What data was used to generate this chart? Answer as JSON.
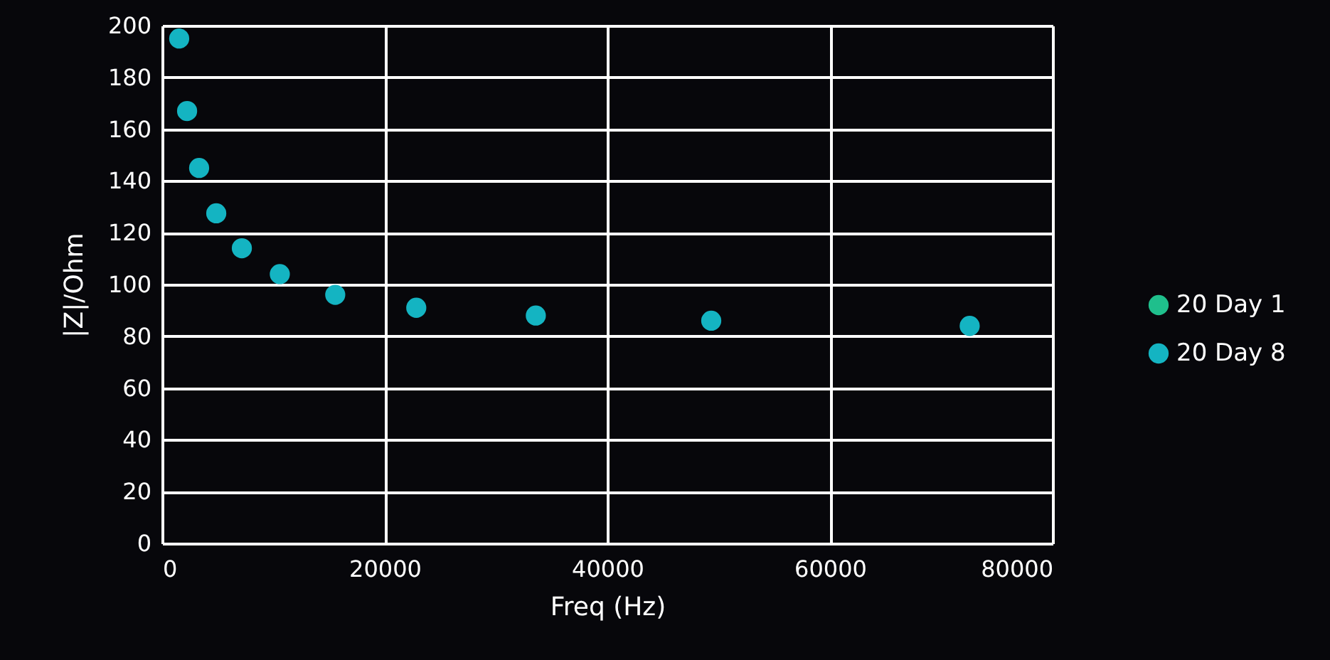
{
  "chart_data": {
    "type": "scatter",
    "xlabel": "Freq (Hz)",
    "ylabel": "|Z|/Ohm",
    "x": [
      1530,
      2240,
      3320,
      4860,
      7160,
      10570,
      15550,
      22830,
      33570,
      49330,
      72550
    ],
    "series": [
      {
        "name": "20 Day 1",
        "color": "#1fbf8c",
        "values": [
          null,
          null,
          null,
          null,
          null,
          null,
          null,
          null,
          null,
          null,
          null
        ]
      },
      {
        "name": "20 Day 8",
        "color": "#14b4c2",
        "values": [
          195,
          167,
          145,
          127.5,
          114,
          104,
          96,
          91,
          88,
          86,
          84
        ]
      }
    ],
    "xlim": [
      0,
      80000
    ],
    "xticks": [
      0,
      20000,
      40000,
      60000,
      80000
    ],
    "ylim": [
      0,
      200
    ],
    "yticks": [
      0,
      20,
      40,
      60,
      80,
      100,
      120,
      140,
      160,
      180,
      200
    ],
    "grid": true,
    "legend": "right",
    "marker": "circle"
  }
}
